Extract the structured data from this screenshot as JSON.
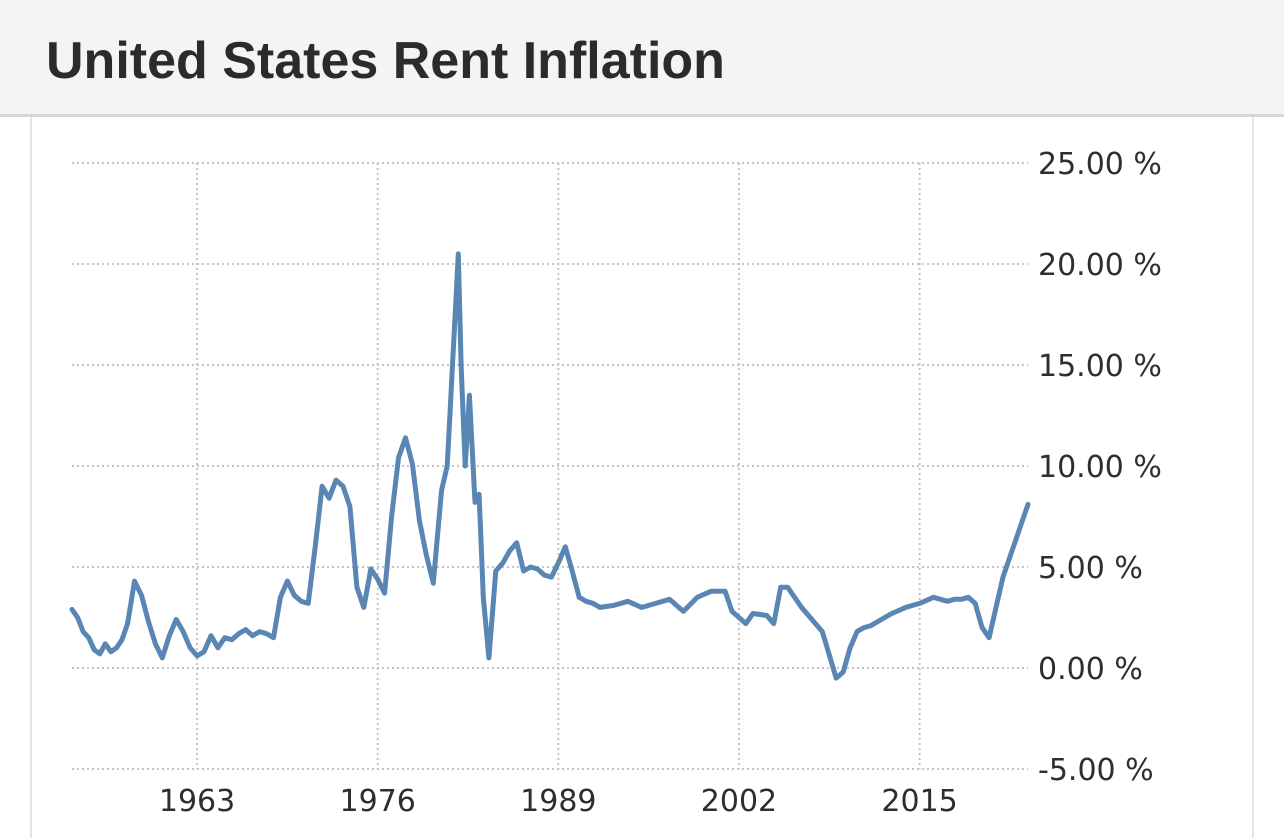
{
  "header": {
    "title": "United States Rent Inflation"
  },
  "chart_data": {
    "type": "line",
    "title": "United States Rent Inflation",
    "xlabel": "",
    "ylabel": "",
    "x_tick_labels": [
      "1963",
      "1976",
      "1989",
      "2002",
      "2015"
    ],
    "x_tick_values": [
      1963,
      1976,
      1989,
      2002,
      2015
    ],
    "y_tick_labels": [
      "25.00 %",
      "20.00 %",
      "15.00 %",
      "10.00 %",
      "5.00 %",
      "0.00 %",
      "-5.00 %"
    ],
    "y_tick_values": [
      25,
      20,
      15,
      10,
      5,
      0,
      -5
    ],
    "xlim": [
      1954.0,
      2022.8
    ],
    "ylim": [
      -5,
      25
    ],
    "grid": true,
    "legend": "none",
    "line_color": "#5a86b4",
    "series": [
      {
        "x": [
          1954.0,
          1954.4,
          1954.8,
          1955.2,
          1955.6,
          1956.0,
          1956.4,
          1956.8,
          1957.2,
          1957.6,
          1958.0,
          1958.5,
          1959.0,
          1959.5,
          1960.0,
          1960.5,
          1961.0,
          1961.5,
          1962.0,
          1962.5,
          1963.0,
          1963.5,
          1964.0,
          1964.5,
          1965.0,
          1965.5,
          1966.0,
          1966.5,
          1967.0,
          1967.5,
          1968.0,
          1968.5,
          1969.0,
          1969.5,
          1970.0,
          1970.5,
          1971.0,
          1971.5,
          1972.0,
          1972.5,
          1973.0,
          1973.5,
          1974.0,
          1974.5,
          1975.0,
          1975.5,
          1976.0,
          1976.5,
          1977.0,
          1977.5,
          1978.0,
          1978.5,
          1979.0,
          1979.5,
          1980.0,
          1980.3,
          1980.6,
          1981.0,
          1981.2,
          1981.4,
          1981.6,
          1981.8,
          1982.0,
          1982.3,
          1982.6,
          1983.0,
          1983.3,
          1983.6,
          1984.0,
          1984.5,
          1985.0,
          1985.5,
          1986.0,
          1986.5,
          1987.0,
          1987.5,
          1988.0,
          1988.5,
          1989.0,
          1989.5,
          1990.0,
          1990.5,
          1991.0,
          1991.5,
          1992.0,
          1993.0,
          1994.0,
          1995.0,
          1996.0,
          1997.0,
          1998.0,
          1999.0,
          2000.0,
          2001.0,
          2001.5,
          2002.0,
          2002.5,
          2003.0,
          2004.0,
          2004.5,
          2005.0,
          2005.5,
          2006.0,
          2006.5,
          2007.0,
          2008.0,
          2009.0,
          2009.5,
          2010.0,
          2010.5,
          2011.0,
          2011.5,
          2012.0,
          2013.0,
          2014.0,
          2015.0,
          2016.0,
          2016.5,
          2017.0,
          2017.5,
          2018.0,
          2018.5,
          2019.0,
          2019.5,
          2020.0,
          2020.5,
          2021.0,
          2021.5,
          2022.0,
          2022.5,
          2022.8
        ],
        "y": [
          2.9,
          2.5,
          1.8,
          1.5,
          0.9,
          0.7,
          1.2,
          0.8,
          1.0,
          1.4,
          2.2,
          4.3,
          3.6,
          2.3,
          1.2,
          0.5,
          1.6,
          2.4,
          1.8,
          1.0,
          0.6,
          0.8,
          1.6,
          1.0,
          1.5,
          1.4,
          1.7,
          1.9,
          1.6,
          1.8,
          1.7,
          1.5,
          3.5,
          4.3,
          3.6,
          3.3,
          3.2,
          6.0,
          9.0,
          8.4,
          9.3,
          9.0,
          8.0,
          4.0,
          3.0,
          4.9,
          4.4,
          3.7,
          7.5,
          10.4,
          11.4,
          10.1,
          7.3,
          5.6,
          4.2,
          6.5,
          8.8,
          10.0,
          12.6,
          15.2,
          17.8,
          20.5,
          15.0,
          10.0,
          13.5,
          8.2,
          8.6,
          3.5,
          0.5,
          4.8,
          5.2,
          5.8,
          6.2,
          4.8,
          5.0,
          4.9,
          4.6,
          4.5,
          5.2,
          6.0,
          4.8,
          3.5,
          3.3,
          3.2,
          3.0,
          3.1,
          3.3,
          3.0,
          3.2,
          3.4,
          2.8,
          3.5,
          3.8,
          3.8,
          2.8,
          2.5,
          2.2,
          2.7,
          2.6,
          2.2,
          4.0,
          4.0,
          3.5,
          3.0,
          2.6,
          1.8,
          -0.5,
          -0.2,
          1.0,
          1.8,
          2.0,
          2.1,
          2.3,
          2.7,
          3.0,
          3.2,
          3.5,
          3.4,
          3.3,
          3.4,
          3.4,
          3.5,
          3.2,
          2.0,
          1.5,
          3.0,
          4.5,
          5.5,
          6.5,
          7.5,
          8.1
        ]
      }
    ]
  }
}
